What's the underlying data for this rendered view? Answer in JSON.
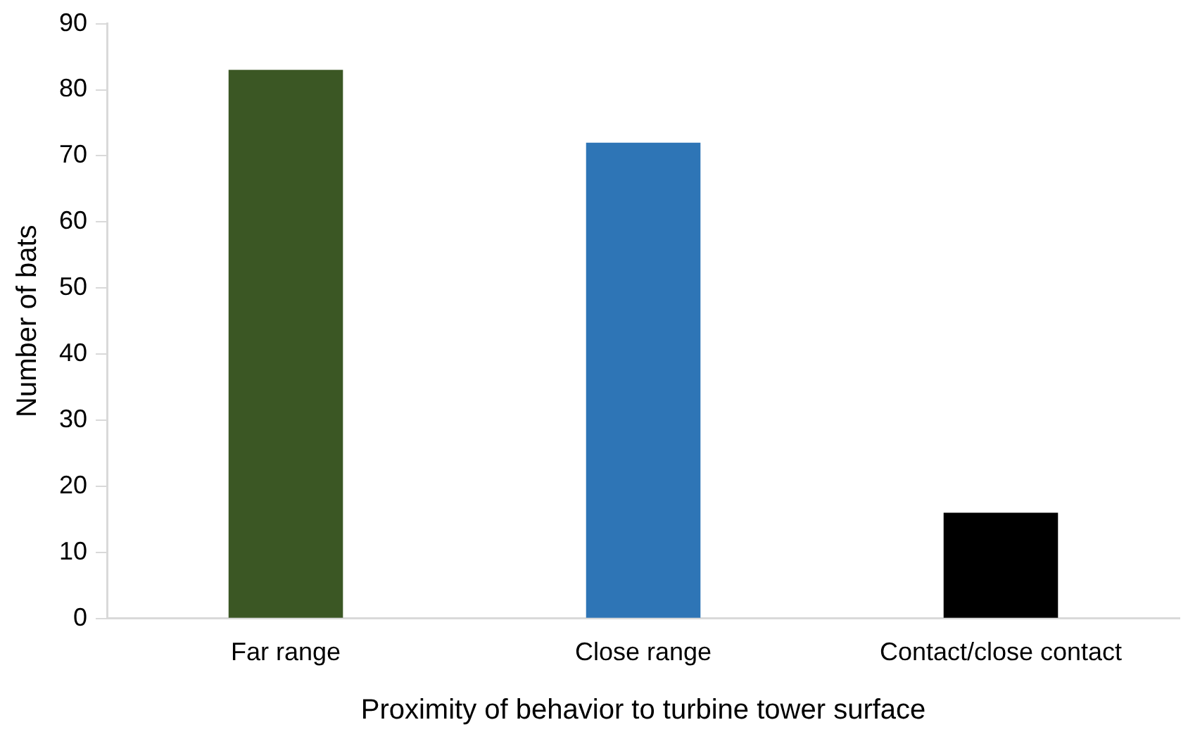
{
  "chart_data": {
    "type": "bar",
    "xlabel": "Proximity of behavior to turbine tower surface",
    "ylabel": "Number of bats",
    "categories": [
      "Far range",
      "Close range",
      "Contact/close contact"
    ],
    "values": [
      83,
      72,
      16
    ],
    "colors": [
      "#3b5724",
      "#2e75b6",
      "#000000"
    ],
    "ylim": [
      0,
      90
    ],
    "yticks": [
      0,
      10,
      20,
      30,
      40,
      50,
      60,
      70,
      80,
      90
    ],
    "grid": false,
    "legend": false
  }
}
